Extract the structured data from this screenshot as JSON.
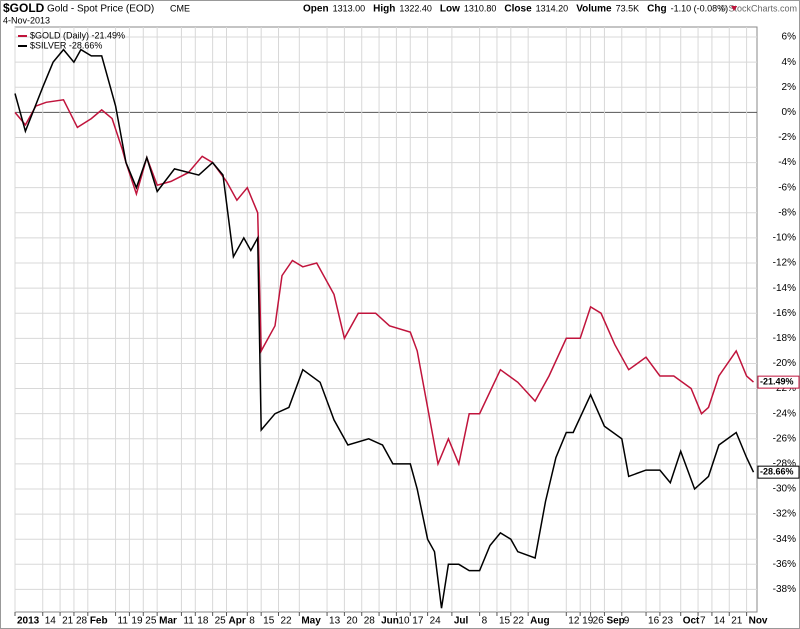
{
  "chart_data": {
    "type": "line",
    "title": "$GOLD",
    "subtitle": "Gold - Spot Price (EOD)",
    "exchange": "CME",
    "date": "4-Nov-2013",
    "quote": [
      {
        "label": "Open",
        "value": "1313.00"
      },
      {
        "label": "High",
        "value": "1322.40"
      },
      {
        "label": "Low",
        "value": "1310.80"
      },
      {
        "label": "Close",
        "value": "1314.20"
      },
      {
        "label": "Volume",
        "value": "73.5K"
      },
      {
        "label": "Chg",
        "value": "-1.10 (-0.08%)"
      }
    ],
    "credit": "© StockCharts.com",
    "xlim": [
      0,
      214
    ],
    "ylim": [
      -39.8,
      6.8
    ],
    "xticks": [
      {
        "value": 0,
        "label": "2013"
      },
      {
        "value": 8,
        "label": "14"
      },
      {
        "value": 13,
        "label": "21"
      },
      {
        "value": 17,
        "label": "28"
      },
      {
        "value": 21,
        "label": "Feb"
      },
      {
        "value": 29,
        "label": "11"
      },
      {
        "value": 33,
        "label": "19"
      },
      {
        "value": 37,
        "label": "25"
      },
      {
        "value": 41,
        "label": "Mar"
      },
      {
        "value": 48,
        "label": "11"
      },
      {
        "value": 52,
        "label": "18"
      },
      {
        "value": 57,
        "label": "25"
      },
      {
        "value": 61,
        "label": "Apr"
      },
      {
        "value": 67,
        "label": "8"
      },
      {
        "value": 71,
        "label": "15"
      },
      {
        "value": 76,
        "label": "22"
      },
      {
        "value": 82,
        "label": "May"
      },
      {
        "value": 90,
        "label": "13"
      },
      {
        "value": 95,
        "label": "20"
      },
      {
        "value": 100,
        "label": "28"
      },
      {
        "value": 105,
        "label": "Jun"
      },
      {
        "value": 110,
        "label": "10"
      },
      {
        "value": 114,
        "label": "17"
      },
      {
        "value": 119,
        "label": "24"
      },
      {
        "value": 126,
        "label": "Jul"
      },
      {
        "value": 134,
        "label": "8"
      },
      {
        "value": 139,
        "label": "15"
      },
      {
        "value": 143,
        "label": "22"
      },
      {
        "value": 148,
        "label": "Aug"
      },
      {
        "value": 159,
        "label": "12"
      },
      {
        "value": 163,
        "label": "19"
      },
      {
        "value": 166,
        "label": "26"
      },
      {
        "value": 170,
        "label": "Sep"
      },
      {
        "value": 175,
        "label": "9"
      },
      {
        "value": 182,
        "label": "16"
      },
      {
        "value": 186,
        "label": "23"
      },
      {
        "value": 192,
        "label": "Oct"
      },
      {
        "value": 197,
        "label": "7"
      },
      {
        "value": 201,
        "label": "14"
      },
      {
        "value": 206,
        "label": "21"
      },
      {
        "value": 211,
        "label": "Nov"
      }
    ],
    "yticks": [
      {
        "value": 6,
        "label": "6%"
      },
      {
        "value": 4,
        "label": "4%"
      },
      {
        "value": 2,
        "label": "2%"
      },
      {
        "value": 0,
        "label": "0%"
      },
      {
        "value": -2,
        "label": "-2%"
      },
      {
        "value": -4,
        "label": "-4%"
      },
      {
        "value": -6,
        "label": "-6%"
      },
      {
        "value": -8,
        "label": "-8%"
      },
      {
        "value": -10,
        "label": "-10%"
      },
      {
        "value": -12,
        "label": "-12%"
      },
      {
        "value": -14,
        "label": "-14%"
      },
      {
        "value": -16,
        "label": "-16%"
      },
      {
        "value": -18,
        "label": "-18%"
      },
      {
        "value": -20,
        "label": "-20%"
      },
      {
        "value": -22,
        "label": "-22%"
      },
      {
        "value": -24,
        "label": "-24%"
      },
      {
        "value": -26,
        "label": "-26%"
      },
      {
        "value": -28,
        "label": "-28%"
      },
      {
        "value": -30,
        "label": "-30%"
      },
      {
        "value": -32,
        "label": "-32%"
      },
      {
        "value": -34,
        "label": "-34%"
      },
      {
        "value": -36,
        "label": "-36%"
      },
      {
        "value": -38,
        "label": "-38%"
      }
    ],
    "grid": true,
    "series": [
      {
        "name": "$GOLD (Daily) -21.49%",
        "color": "#c0143c",
        "end_label": "-21.49%",
        "x": [
          0,
          3,
          6,
          9,
          14,
          18,
          22,
          25,
          28,
          31,
          32,
          35,
          38,
          41,
          45,
          50,
          54,
          57,
          61,
          64,
          67,
          70,
          71,
          75,
          77,
          80,
          83,
          87,
          92,
          95,
          99,
          104,
          108,
          114,
          116,
          119,
          122,
          125,
          128,
          131,
          134,
          140,
          145,
          150,
          154,
          159,
          163,
          166,
          169,
          173,
          177,
          182,
          186,
          190,
          195,
          198,
          200,
          203,
          208,
          211,
          213
        ],
        "values": [
          0,
          -1,
          0.5,
          0.8,
          1.0,
          -1.2,
          -0.5,
          0.2,
          -0.5,
          -3,
          -4,
          -6.5,
          -3.6,
          -5.8,
          -5.5,
          -4.8,
          -3.5,
          -4,
          -5.5,
          -7,
          -6,
          -8,
          -19,
          -17,
          -13,
          -11.8,
          -12.3,
          -12,
          -14.5,
          -18,
          -16,
          -16,
          -17,
          -17.5,
          -19,
          -23.5,
          -28,
          -26,
          -28,
          -24,
          -24,
          -20.5,
          -21.5,
          -23,
          -21,
          -18,
          -18,
          -15.5,
          -16,
          -18.5,
          -20.5,
          -19.5,
          -21,
          -21,
          -22,
          -24,
          -23.5,
          -21,
          -19,
          -21,
          -21.49
        ]
      },
      {
        "name": "$SILVER -28.66%",
        "color": "#000000",
        "end_label": "-28.66%",
        "x": [
          0,
          3,
          8,
          11,
          14,
          17,
          19,
          22,
          25,
          29,
          32,
          35,
          38,
          41,
          46,
          53,
          57,
          60,
          63,
          66,
          68,
          70,
          71,
          75,
          79,
          83,
          88,
          92,
          96,
          102,
          106,
          109,
          114,
          116,
          119,
          121,
          123,
          125,
          128,
          131,
          134,
          137,
          140,
          143,
          145,
          150,
          153,
          156,
          159,
          161,
          166,
          170,
          175,
          177,
          182,
          186,
          189,
          192,
          196,
          200,
          203,
          208,
          211,
          213
        ],
        "values": [
          1.5,
          -1.5,
          2,
          4,
          5,
          4,
          5,
          4.5,
          4.5,
          0.5,
          -4,
          -6,
          -3.6,
          -6.3,
          -4.5,
          -5,
          -4,
          -5,
          -11.5,
          -10,
          -11,
          -10,
          -25.3,
          -24,
          -23.5,
          -20.5,
          -21.5,
          -24.5,
          -26.5,
          -26,
          -26.5,
          -28,
          -28,
          -30,
          -34,
          -35,
          -39.5,
          -36,
          -36,
          -36.5,
          -36.5,
          -34.5,
          -33.5,
          -34,
          -35,
          -35.5,
          -31,
          -27.5,
          -25.5,
          -25.5,
          -22.5,
          -25,
          -26,
          -29,
          -28.5,
          -28.5,
          -29.5,
          -27,
          -30,
          -29,
          -26.5,
          -25.5,
          -27.5,
          -28.66
        ]
      }
    ]
  }
}
